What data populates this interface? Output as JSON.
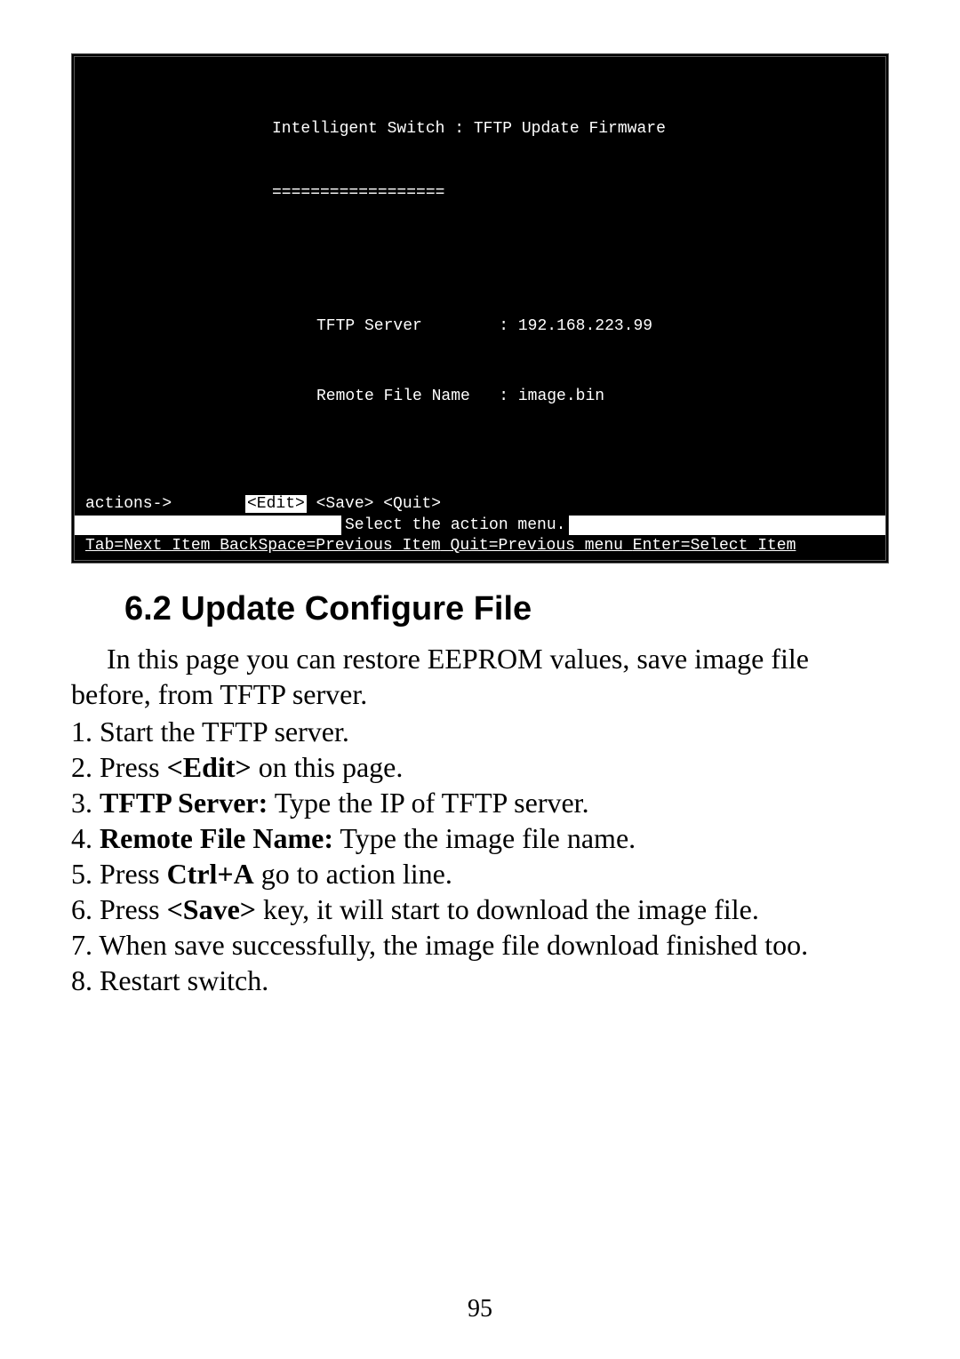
{
  "terminal": {
    "title": "Intelligent Switch : TFTP Update Firmware",
    "underline": "==================",
    "fields": {
      "server_label": "TFTP Server",
      "server_value": "192.168.223.99",
      "filename_label": "Remote File Name",
      "filename_value": "image.bin"
    },
    "actions": {
      "label": "actions->",
      "edit": "<Edit>",
      "save": "<Save>",
      "quit": "<Quit>"
    },
    "action_menu_hint": "Select the action menu.",
    "bottom_hint": {
      "tab": "Tab=Next Item",
      "back": "BackSpace=Previous Item",
      "quit": "Quit=Previous menu",
      "enter": "Enter=Select Item"
    }
  },
  "doc": {
    "heading": "6.2 Update Configure File",
    "para1": "In this page you can restore EEPROM values, save image file before, from TFTP server.",
    "steps": [
      {
        "pre": "1. Start the TFTP server."
      },
      {
        "pre": "2. Press ",
        "bold": "<Edit>",
        "post": " on this page."
      },
      {
        "pre": "3. ",
        "bold": "TFTP Server:",
        "post": " Type the IP of TFTP server."
      },
      {
        "pre": "4. ",
        "bold": "Remote File Name:",
        "post": " Type the image file name."
      },
      {
        "pre": "5. Press ",
        "bold": "Ctrl+A",
        "post": " go to action line."
      },
      {
        "pre": "6. Press ",
        "bold": "<Save>",
        "post": " key, it will start to download the image file."
      },
      {
        "pre": "7. When save successfully, the image file download finished too."
      },
      {
        "pre": "8. Restart switch."
      }
    ]
  },
  "page_number": "95"
}
